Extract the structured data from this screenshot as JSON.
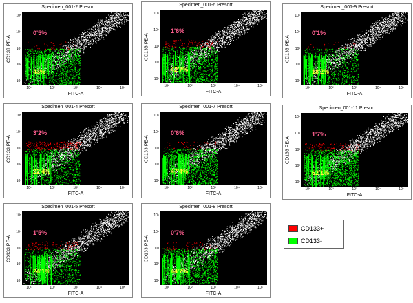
{
  "chart_data": [
    {
      "type": "scatter",
      "title": "Specimen_001-2 Presort",
      "xlabel": "FITC-A",
      "ylabel": "CD133 PE-A",
      "pos_pct": "0'5%",
      "neg_pct": "43%",
      "xscale": "log",
      "yscale": "log",
      "x_ticks": [
        "10¹",
        "10²",
        "10³",
        "10⁴",
        "10⁵"
      ],
      "y_ticks": [
        "10⁵",
        "10⁴",
        "10³",
        "10²",
        "10¹"
      ]
    },
    {
      "type": "scatter",
      "title": "Specimen_001-6 Presort",
      "xlabel": "FITC-A",
      "ylabel": "CD133 PE-A",
      "pos_pct": "1'6%",
      "neg_pct": "42'7%",
      "xscale": "log",
      "yscale": "log",
      "x_ticks": [
        "10¹",
        "10²",
        "10³",
        "10⁴",
        "10⁵"
      ],
      "y_ticks": [
        "10⁵",
        "10⁴",
        "10³",
        "10²",
        "10¹"
      ]
    },
    {
      "type": "scatter",
      "title": "Specimen_001-9 Presort",
      "xlabel": "FITC-A",
      "ylabel": "CD133 PE-A",
      "pos_pct": "0'1%",
      "neg_pct": "18'2%",
      "xscale": "log",
      "yscale": "log",
      "x_ticks": [
        "10¹",
        "10²",
        "10³",
        "10⁴",
        "10⁵"
      ],
      "y_ticks": [
        "10⁵",
        "10⁴",
        "10³",
        "10²",
        "10¹"
      ]
    },
    {
      "type": "scatter",
      "title": "Specimen_001-4 Presort",
      "xlabel": "FITC-A",
      "ylabel": "CD133 PE-A",
      "pos_pct": "3'2%",
      "neg_pct": "22'4%",
      "xscale": "log",
      "yscale": "log",
      "x_ticks": [
        "10¹",
        "10²",
        "10³",
        "10⁴",
        "10⁵"
      ],
      "y_ticks": [
        "10⁵",
        "10⁴",
        "10³",
        "10²",
        "10¹"
      ]
    },
    {
      "type": "scatter",
      "title": "Specimen_001-7 Presort",
      "xlabel": "FITC-A",
      "ylabel": "CD133 PE-A",
      "pos_pct": "0'6%",
      "neg_pct": "47'4%",
      "xscale": "log",
      "yscale": "log",
      "x_ticks": [
        "10¹",
        "10²",
        "10³",
        "10⁴",
        "10⁵"
      ],
      "y_ticks": [
        "10⁵",
        "10⁴",
        "10³",
        "10²",
        "10¹"
      ]
    },
    {
      "type": "scatter",
      "title": "Specimen_001-11 Presort",
      "xlabel": "FITC-A",
      "ylabel": "CD133 PE-A",
      "pos_pct": "1'7%",
      "neg_pct": "62'1%",
      "xscale": "log",
      "yscale": "log",
      "x_ticks": [
        "10¹",
        "10²",
        "10³",
        "10⁴",
        "10⁵"
      ],
      "y_ticks": [
        "10⁵",
        "10⁴",
        "10³",
        "10²",
        "10¹"
      ]
    },
    {
      "type": "scatter",
      "title": "Specimen_001-5 Presort",
      "xlabel": "FITC-A",
      "ylabel": "CD133 PE-A",
      "pos_pct": "1'5%",
      "neg_pct": "24'1%",
      "xscale": "log",
      "yscale": "log",
      "x_ticks": [
        "10¹",
        "10²",
        "10³",
        "10⁴",
        "10⁵"
      ],
      "y_ticks": [
        "10⁵",
        "10⁴",
        "10³",
        "10²",
        "10¹"
      ]
    },
    {
      "type": "scatter",
      "title": "Specimen_001-8 Presort",
      "xlabel": "FITC-A",
      "ylabel": "CD133 PE-A",
      "pos_pct": "0'7%",
      "neg_pct": "44'7%",
      "xscale": "log",
      "yscale": "log",
      "x_ticks": [
        "10¹",
        "10²",
        "10³",
        "10⁴",
        "10⁵"
      ],
      "y_ticks": [
        "10⁵",
        "10⁴",
        "10³",
        "10²",
        "10¹"
      ]
    }
  ],
  "legend": {
    "items": [
      {
        "label": "CD133+",
        "color": "#ff0000"
      },
      {
        "label": "CD133-",
        "color": "#00ff00"
      }
    ]
  },
  "colors": {
    "background": "#000000",
    "pos_gate": "#ff0000",
    "neg_gate": "#00ff00",
    "other_events": "#ffffff",
    "pos_text": "#ff5f8f",
    "neg_text": "#ffff33"
  }
}
